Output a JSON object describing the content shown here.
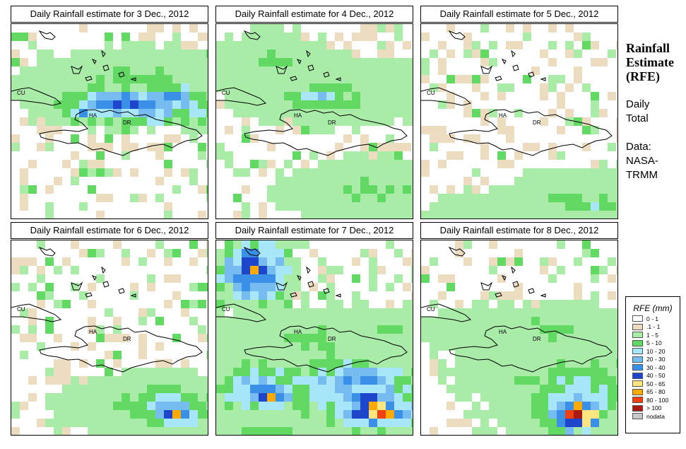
{
  "panels": [
    {
      "title": "Daily Rainfall estimate for  3 Dec., 2012",
      "scenario": "d3"
    },
    {
      "title": "Daily Rainfall estimate for  4 Dec., 2012",
      "scenario": "d4"
    },
    {
      "title": "Daily Rainfall estimate for  5 Dec., 2012",
      "scenario": "d5"
    },
    {
      "title": "Daily Rainfall estimate for  6 Dec., 2012",
      "scenario": "d6"
    },
    {
      "title": "Daily Rainfall estimate for  7 Dec., 2012",
      "scenario": "d7"
    },
    {
      "title": "Daily Rainfall estimate for  8 Dec., 2012",
      "scenario": "d8"
    }
  ],
  "map_labels": {
    "cuba": "CU",
    "haiti": "HA",
    "dominican_republic": "DR"
  },
  "sidebar": {
    "title_line1": "Rainfall",
    "title_line2": "Estimate",
    "title_line3": "(RFE)",
    "daily": "Daily",
    "total": "Total",
    "data_label": "Data:",
    "source1": "NASA-",
    "source2": "TRMM"
  },
  "legend": {
    "title": "RFE (mm)",
    "entries": [
      {
        "label": "0 - 1",
        "color": "#ffffff"
      },
      {
        "label": ".1 - 1",
        "color": "#ecdcc0"
      },
      {
        "label": "1 - 5",
        "color": "#a8eca8"
      },
      {
        "label": "5 - 10",
        "color": "#62d962"
      },
      {
        "label": "10 - 20",
        "color": "#a8e6fa"
      },
      {
        "label": "20 - 30",
        "color": "#77bcf0"
      },
      {
        "label": "30 - 40",
        "color": "#3a8fe6"
      },
      {
        "label": "40 - 50",
        "color": "#1e46cc"
      },
      {
        "label": "50 - 65",
        "color": "#ffe680"
      },
      {
        "label": "65 - 80",
        "color": "#ffaa00"
      },
      {
        "label": "80 - 100",
        "color": "#f04010"
      },
      {
        "label": "> 100",
        "color": "#a81a12"
      },
      {
        "label": "nodata",
        "color": "#c8c8c8"
      }
    ]
  }
}
